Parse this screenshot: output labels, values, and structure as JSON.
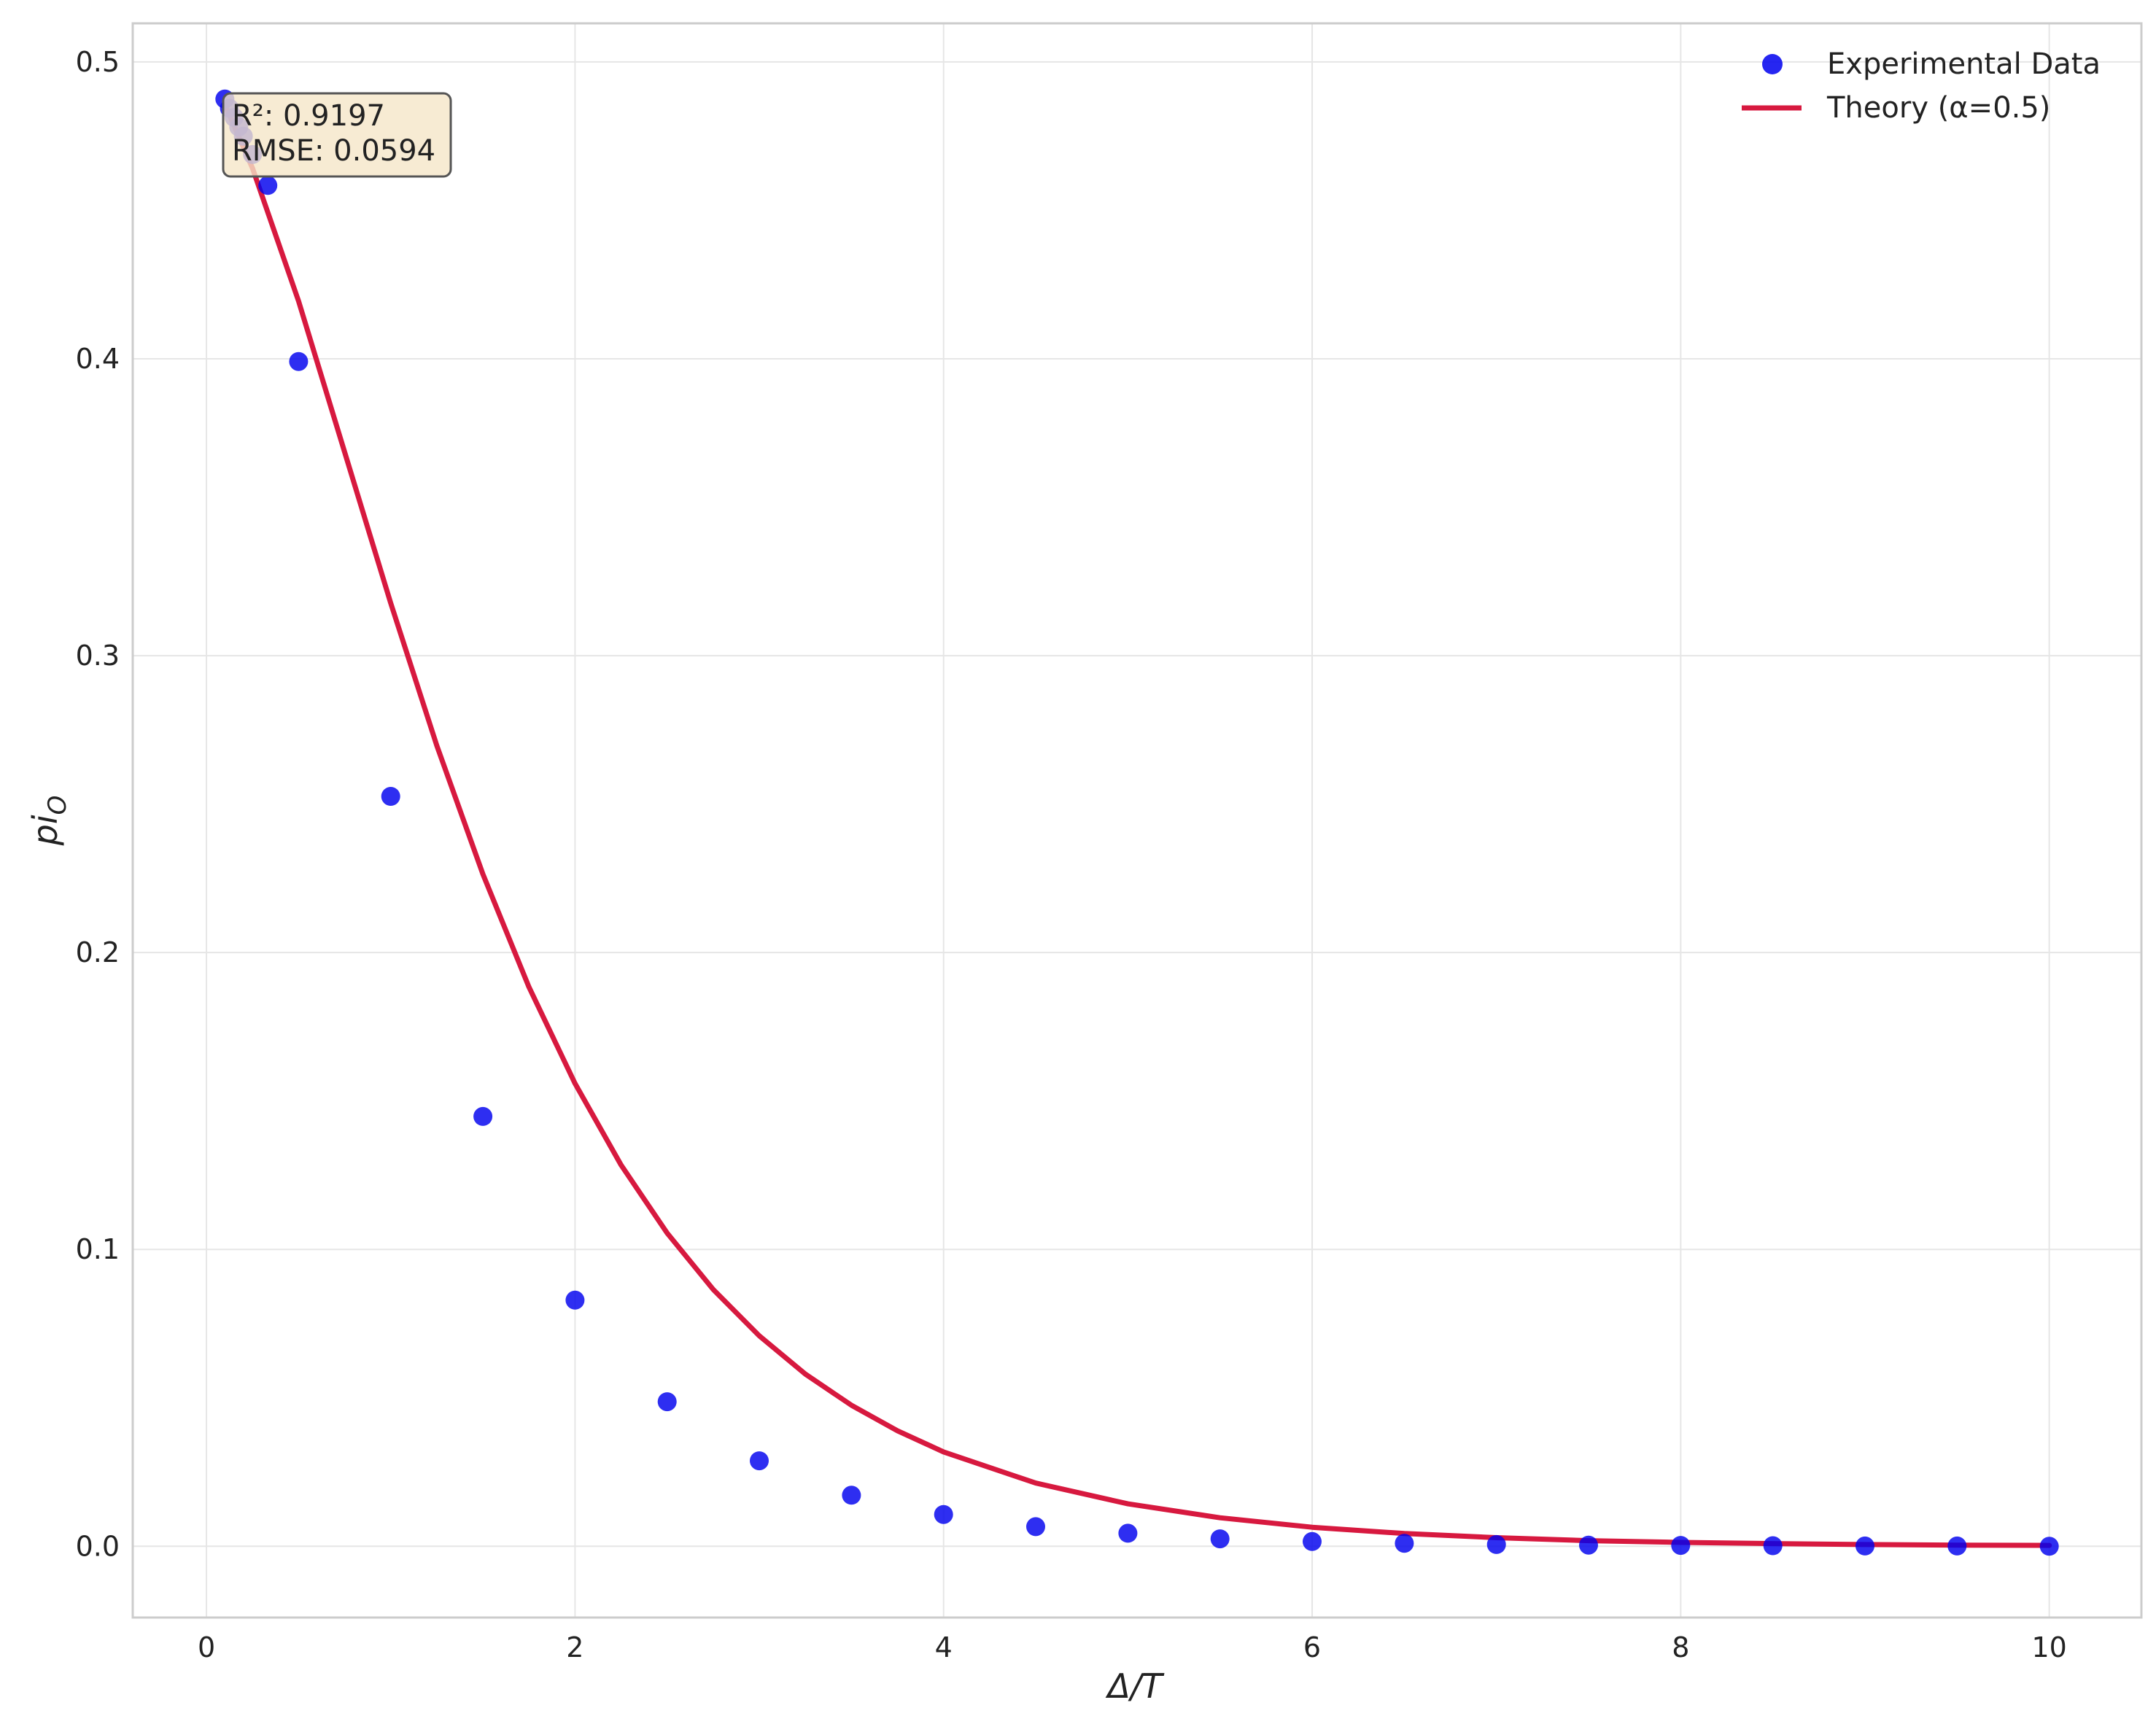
{
  "chart_data": {
    "type": "scatter",
    "xlabel": "Δ/T",
    "ylabel_base": "pi",
    "ylabel_sub": "O",
    "xlim": [
      -0.4,
      10.5
    ],
    "ylim": [
      -0.024,
      0.513
    ],
    "xticks": [
      0,
      2,
      4,
      6,
      8,
      10
    ],
    "xtick_labels": [
      "0",
      "2",
      "4",
      "6",
      "8",
      "10"
    ],
    "yticks": [
      0.0,
      0.1,
      0.2,
      0.3,
      0.4,
      0.5
    ],
    "ytick_labels": [
      "0.0",
      "0.1",
      "0.2",
      "0.3",
      "0.4",
      "0.5"
    ],
    "grid": true,
    "legend_position": "top-right",
    "series": [
      {
        "name": "Experimental Data",
        "kind": "scatter",
        "color": "#0000ee",
        "x": [
          0.1,
          0.125,
          0.15,
          0.175,
          0.2,
          0.25,
          0.333,
          0.5,
          1.0,
          1.5,
          2.0,
          2.5,
          3.0,
          3.5,
          4.0,
          4.5,
          5.0,
          5.5,
          6.0,
          6.5,
          7.0,
          7.5,
          8.0,
          8.5,
          9.0,
          9.5,
          10.0
        ],
        "y": [
          0.4875,
          0.4844,
          0.4813,
          0.4781,
          0.475,
          0.4688,
          0.4584,
          0.3991,
          0.2526,
          0.1448,
          0.0829,
          0.0487,
          0.0288,
          0.0172,
          0.0107,
          0.0066,
          0.0044,
          0.0025,
          0.0016,
          0.001,
          0.0006,
          0.0004,
          0.0003,
          0.0002,
          0.0001,
          0.0001,
          0.0
        ]
      },
      {
        "name": "Theory (α=0.5)",
        "kind": "line",
        "color": "#d7193f",
        "x": [
          0.1,
          0.25,
          0.5,
          0.75,
          1.0,
          1.25,
          1.5,
          1.75,
          2.0,
          2.25,
          2.5,
          2.75,
          3.0,
          3.25,
          3.5,
          3.75,
          4.0,
          4.5,
          5.0,
          5.5,
          6.0,
          6.5,
          7.0,
          7.5,
          8.0,
          8.5,
          9.0,
          9.5,
          10.0
        ],
        "y": [
          0.4856,
          0.4642,
          0.4194,
          0.3685,
          0.3177,
          0.2697,
          0.2264,
          0.1884,
          0.1559,
          0.1284,
          0.1055,
          0.0865,
          0.0709,
          0.058,
          0.0475,
          0.0389,
          0.0318,
          0.0213,
          0.0143,
          0.0096,
          0.0064,
          0.0043,
          0.0029,
          0.0019,
          0.0013,
          0.0009,
          0.0006,
          0.0004,
          0.0003
        ]
      }
    ],
    "annotation": {
      "r2": "R²: 0.9197",
      "rmse": "RMSE: 0.0594",
      "background": "#f5e6c8"
    }
  }
}
